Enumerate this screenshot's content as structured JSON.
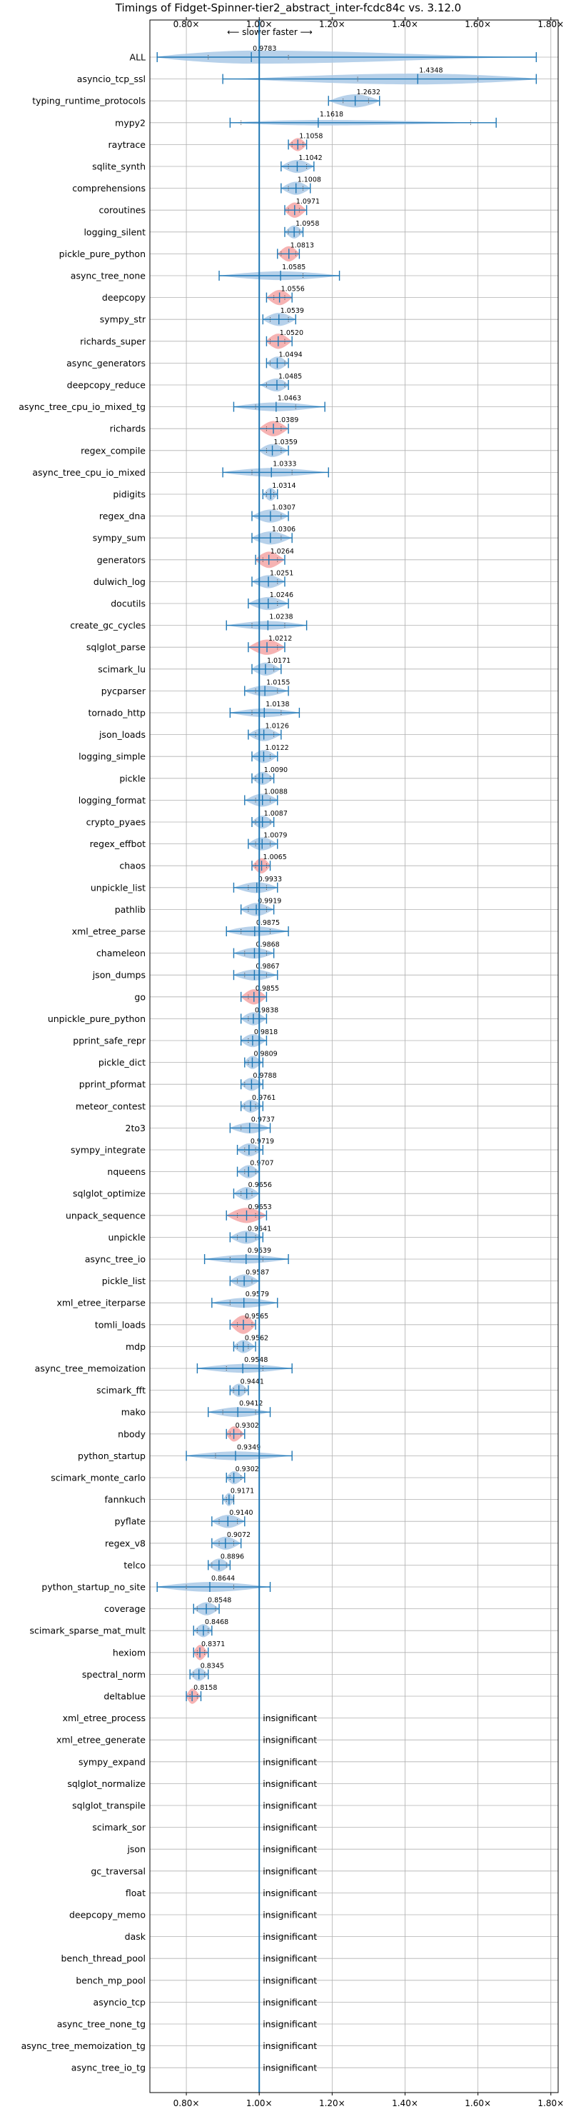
{
  "chart_data": {
    "type": "violin",
    "title": "Timings of Fidget-Spinner-tier2_abstract_inter-fcdc84c vs. 3.12.0",
    "subtitle": "⟵ slower   faster ⟶",
    "xlim": [
      0.7,
      1.82
    ],
    "xticks": [
      0.8,
      1.0,
      1.2,
      1.4,
      1.6,
      1.8
    ],
    "xtick_labels": [
      "0.80×",
      "1.00×",
      "1.20×",
      "1.40×",
      "1.60×",
      "1.80×"
    ],
    "reference_line": 1.0,
    "grid": true,
    "insignificant_label": "insignificant",
    "colors": {
      "violin": "#aac9e6",
      "highlight": "#f4a6a6",
      "line": "#1f77b4"
    },
    "benchmarks": [
      {
        "name": "ALL",
        "value": 0.9783,
        "label": "0.9783",
        "min": 0.72,
        "max": 1.76,
        "q1": 0.86,
        "q3": 1.08,
        "w": 0.6,
        "hl": false
      },
      {
        "name": "asyncio_tcp_ssl",
        "value": 1.4348,
        "label": "1.4348",
        "min": 0.9,
        "max": 1.76,
        "q1": 1.27,
        "q3": 1.6,
        "w": 0.5,
        "hl": false
      },
      {
        "name": "typing_runtime_protocols",
        "value": 1.2632,
        "label": "1.2632",
        "min": 1.19,
        "max": 1.33,
        "q1": 1.23,
        "q3": 1.3,
        "w": 0.6,
        "hl": false
      },
      {
        "name": "mypy2",
        "value": 1.1618,
        "label": "1.1618",
        "min": 0.92,
        "max": 1.65,
        "q1": 0.95,
        "q3": 1.58,
        "w": 0.25,
        "hl": false
      },
      {
        "name": "raytrace",
        "value": 1.1058,
        "label": "1.1058",
        "min": 1.08,
        "max": 1.13,
        "q1": 1.09,
        "q3": 1.12,
        "w": 0.6,
        "hl": true
      },
      {
        "name": "sqlite_synth",
        "value": 1.1042,
        "label": "1.1042",
        "min": 1.06,
        "max": 1.15,
        "q1": 1.08,
        "q3": 1.13,
        "w": 0.6,
        "hl": false
      },
      {
        "name": "comprehensions",
        "value": 1.1008,
        "label": "1.1008",
        "min": 1.06,
        "max": 1.14,
        "q1": 1.08,
        "q3": 1.12,
        "w": 0.6,
        "hl": false
      },
      {
        "name": "coroutines",
        "value": 1.0971,
        "label": "1.0971",
        "min": 1.07,
        "max": 1.13,
        "q1": 1.08,
        "q3": 1.11,
        "w": 0.7,
        "hl": true
      },
      {
        "name": "logging_silent",
        "value": 1.0958,
        "label": "1.0958",
        "min": 1.07,
        "max": 1.12,
        "q1": 1.08,
        "q3": 1.11,
        "w": 0.6,
        "hl": false
      },
      {
        "name": "pickle_pure_python",
        "value": 1.0813,
        "label": "1.0813",
        "min": 1.05,
        "max": 1.11,
        "q1": 1.06,
        "q3": 1.1,
        "w": 0.7,
        "hl": true
      },
      {
        "name": "async_tree_none",
        "value": 1.0585,
        "label": "1.0585",
        "min": 0.89,
        "max": 1.22,
        "q1": 1.0,
        "q3": 1.12,
        "w": 0.4,
        "hl": false
      },
      {
        "name": "deepcopy",
        "value": 1.0556,
        "label": "1.0556",
        "min": 1.02,
        "max": 1.09,
        "q1": 1.04,
        "q3": 1.07,
        "w": 0.7,
        "hl": true
      },
      {
        "name": "sympy_str",
        "value": 1.0539,
        "label": "1.0539",
        "min": 1.01,
        "max": 1.1,
        "q1": 1.03,
        "q3": 1.08,
        "w": 0.6,
        "hl": false
      },
      {
        "name": "richards_super",
        "value": 1.052,
        "label": "1.0520",
        "min": 1.02,
        "max": 1.09,
        "q1": 1.03,
        "q3": 1.07,
        "w": 0.7,
        "hl": true
      },
      {
        "name": "async_generators",
        "value": 1.0494,
        "label": "1.0494",
        "min": 1.02,
        "max": 1.08,
        "q1": 1.03,
        "q3": 1.07,
        "w": 0.6,
        "hl": false
      },
      {
        "name": "deepcopy_reduce",
        "value": 1.0485,
        "label": "1.0485",
        "min": 1.0,
        "max": 1.08,
        "q1": 1.02,
        "q3": 1.07,
        "w": 0.6,
        "hl": false
      },
      {
        "name": "async_tree_cpu_io_mixed_tg",
        "value": 1.0463,
        "label": "1.0463",
        "min": 0.93,
        "max": 1.18,
        "q1": 0.99,
        "q3": 1.1,
        "w": 0.4,
        "hl": false
      },
      {
        "name": "richards",
        "value": 1.0389,
        "label": "1.0389",
        "min": 1.0,
        "max": 1.08,
        "q1": 1.02,
        "q3": 1.06,
        "w": 0.7,
        "hl": true
      },
      {
        "name": "regex_compile",
        "value": 1.0359,
        "label": "1.0359",
        "min": 1.0,
        "max": 1.08,
        "q1": 1.02,
        "q3": 1.06,
        "w": 0.6,
        "hl": false
      },
      {
        "name": "async_tree_cpu_io_mixed",
        "value": 1.0333,
        "label": "1.0333",
        "min": 0.9,
        "max": 1.19,
        "q1": 0.98,
        "q3": 1.09,
        "w": 0.4,
        "hl": false
      },
      {
        "name": "pidigits",
        "value": 1.0314,
        "label": "1.0314",
        "min": 1.01,
        "max": 1.05,
        "q1": 1.02,
        "q3": 1.04,
        "w": 0.6,
        "hl": false
      },
      {
        "name": "regex_dna",
        "value": 1.0307,
        "label": "1.0307",
        "min": 0.98,
        "max": 1.08,
        "q1": 1.0,
        "q3": 1.06,
        "w": 0.6,
        "hl": false
      },
      {
        "name": "sympy_sum",
        "value": 1.0306,
        "label": "1.0306",
        "min": 0.98,
        "max": 1.09,
        "q1": 1.0,
        "q3": 1.06,
        "w": 0.6,
        "hl": false
      },
      {
        "name": "generators",
        "value": 1.0264,
        "label": "1.0264",
        "min": 0.99,
        "max": 1.07,
        "q1": 1.01,
        "q3": 1.05,
        "w": 0.75,
        "hl": true
      },
      {
        "name": "dulwich_log",
        "value": 1.0251,
        "label": "1.0251",
        "min": 0.98,
        "max": 1.07,
        "q1": 1.0,
        "q3": 1.05,
        "w": 0.6,
        "hl": false
      },
      {
        "name": "docutils",
        "value": 1.0246,
        "label": "1.0246",
        "min": 0.97,
        "max": 1.08,
        "q1": 1.0,
        "q3": 1.05,
        "w": 0.6,
        "hl": false
      },
      {
        "name": "create_gc_cycles",
        "value": 1.0238,
        "label": "1.0238",
        "min": 0.91,
        "max": 1.13,
        "q1": 0.98,
        "q3": 1.07,
        "w": 0.4,
        "hl": false
      },
      {
        "name": "sqlglot_parse",
        "value": 1.0212,
        "label": "1.0212",
        "min": 0.97,
        "max": 1.07,
        "q1": 1.0,
        "q3": 1.05,
        "w": 0.7,
        "hl": true
      },
      {
        "name": "scimark_lu",
        "value": 1.0171,
        "label": "1.0171",
        "min": 0.98,
        "max": 1.06,
        "q1": 1.0,
        "q3": 1.04,
        "w": 0.6,
        "hl": false
      },
      {
        "name": "pycparser",
        "value": 1.0155,
        "label": "1.0155",
        "min": 0.96,
        "max": 1.08,
        "q1": 0.99,
        "q3": 1.05,
        "w": 0.5,
        "hl": false
      },
      {
        "name": "tornado_http",
        "value": 1.0138,
        "label": "1.0138",
        "min": 0.92,
        "max": 1.11,
        "q1": 0.98,
        "q3": 1.06,
        "w": 0.4,
        "hl": false
      },
      {
        "name": "json_loads",
        "value": 1.0126,
        "label": "1.0126",
        "min": 0.97,
        "max": 1.06,
        "q1": 0.99,
        "q3": 1.04,
        "w": 0.6,
        "hl": false
      },
      {
        "name": "logging_simple",
        "value": 1.0122,
        "label": "1.0122",
        "min": 0.98,
        "max": 1.05,
        "q1": 1.0,
        "q3": 1.03,
        "w": 0.6,
        "hl": false
      },
      {
        "name": "pickle",
        "value": 1.009,
        "label": "1.0090",
        "min": 0.98,
        "max": 1.04,
        "q1": 0.99,
        "q3": 1.03,
        "w": 0.6,
        "hl": false
      },
      {
        "name": "logging_format",
        "value": 1.0088,
        "label": "1.0088",
        "min": 0.96,
        "max": 1.05,
        "q1": 0.99,
        "q3": 1.03,
        "w": 0.6,
        "hl": false
      },
      {
        "name": "crypto_pyaes",
        "value": 1.0087,
        "label": "1.0087",
        "min": 0.98,
        "max": 1.04,
        "q1": 0.99,
        "q3": 1.03,
        "w": 0.6,
        "hl": false
      },
      {
        "name": "regex_effbot",
        "value": 1.0079,
        "label": "1.0079",
        "min": 0.97,
        "max": 1.05,
        "q1": 0.99,
        "q3": 1.03,
        "w": 0.6,
        "hl": false
      },
      {
        "name": "chaos",
        "value": 1.0065,
        "label": "1.0065",
        "min": 0.98,
        "max": 1.03,
        "q1": 0.99,
        "q3": 1.02,
        "w": 0.7,
        "hl": true
      },
      {
        "name": "unpickle_list",
        "value": 0.9933,
        "label": "0.9933",
        "min": 0.93,
        "max": 1.05,
        "q1": 0.97,
        "q3": 1.02,
        "w": 0.5,
        "hl": false
      },
      {
        "name": "pathlib",
        "value": 0.9919,
        "label": "0.9919",
        "min": 0.95,
        "max": 1.04,
        "q1": 0.97,
        "q3": 1.02,
        "w": 0.6,
        "hl": false
      },
      {
        "name": "xml_etree_parse",
        "value": 0.9875,
        "label": "0.9875",
        "min": 0.91,
        "max": 1.08,
        "q1": 0.95,
        "q3": 1.03,
        "w": 0.45,
        "hl": false
      },
      {
        "name": "chameleon",
        "value": 0.9868,
        "label": "0.9868",
        "min": 0.93,
        "max": 1.04,
        "q1": 0.96,
        "q3": 1.02,
        "w": 0.5,
        "hl": false
      },
      {
        "name": "json_dumps",
        "value": 0.9867,
        "label": "0.9867",
        "min": 0.93,
        "max": 1.05,
        "q1": 0.96,
        "q3": 1.02,
        "w": 0.5,
        "hl": false
      },
      {
        "name": "go",
        "value": 0.9855,
        "label": "0.9855",
        "min": 0.95,
        "max": 1.02,
        "q1": 0.97,
        "q3": 1.0,
        "w": 0.7,
        "hl": true
      },
      {
        "name": "unpickle_pure_python",
        "value": 0.9838,
        "label": "0.9838",
        "min": 0.95,
        "max": 1.02,
        "q1": 0.97,
        "q3": 1.0,
        "w": 0.6,
        "hl": false
      },
      {
        "name": "pprint_safe_repr",
        "value": 0.9818,
        "label": "0.9818",
        "min": 0.95,
        "max": 1.02,
        "q1": 0.97,
        "q3": 1.0,
        "w": 0.6,
        "hl": false
      },
      {
        "name": "pickle_dict",
        "value": 0.9809,
        "label": "0.9809",
        "min": 0.96,
        "max": 1.01,
        "q1": 0.97,
        "q3": 1.0,
        "w": 0.6,
        "hl": false
      },
      {
        "name": "pprint_pformat",
        "value": 0.9788,
        "label": "0.9788",
        "min": 0.95,
        "max": 1.01,
        "q1": 0.96,
        "q3": 1.0,
        "w": 0.6,
        "hl": false
      },
      {
        "name": "meteor_contest",
        "value": 0.9761,
        "label": "0.9761",
        "min": 0.95,
        "max": 1.01,
        "q1": 0.96,
        "q3": 0.99,
        "w": 0.6,
        "hl": false
      },
      {
        "name": "2to3",
        "value": 0.9737,
        "label": "0.9737",
        "min": 0.92,
        "max": 1.03,
        "q1": 0.95,
        "q3": 1.0,
        "w": 0.5,
        "hl": false
      },
      {
        "name": "sympy_integrate",
        "value": 0.9719,
        "label": "0.9719",
        "min": 0.94,
        "max": 1.01,
        "q1": 0.96,
        "q3": 0.99,
        "w": 0.6,
        "hl": false
      },
      {
        "name": "nqueens",
        "value": 0.9707,
        "label": "0.9707",
        "min": 0.94,
        "max": 1.0,
        "q1": 0.96,
        "q3": 0.99,
        "w": 0.6,
        "hl": false
      },
      {
        "name": "sqlglot_optimize",
        "value": 0.9656,
        "label": "0.9656",
        "min": 0.93,
        "max": 1.0,
        "q1": 0.95,
        "q3": 0.98,
        "w": 0.6,
        "hl": false
      },
      {
        "name": "unpack_sequence",
        "value": 0.9653,
        "label": "0.9653",
        "min": 0.91,
        "max": 1.02,
        "q1": 0.94,
        "q3": 0.99,
        "w": 0.7,
        "hl": true
      },
      {
        "name": "unpickle",
        "value": 0.9641,
        "label": "0.9641",
        "min": 0.92,
        "max": 1.01,
        "q1": 0.94,
        "q3": 0.99,
        "w": 0.6,
        "hl": false
      },
      {
        "name": "async_tree_io",
        "value": 0.9639,
        "label": "0.9639",
        "min": 0.85,
        "max": 1.08,
        "q1": 0.92,
        "q3": 1.01,
        "w": 0.4,
        "hl": false
      },
      {
        "name": "pickle_list",
        "value": 0.9587,
        "label": "0.9587",
        "min": 0.92,
        "max": 1.0,
        "q1": 0.94,
        "q3": 0.98,
        "w": 0.6,
        "hl": false
      },
      {
        "name": "xml_etree_iterparse",
        "value": 0.9579,
        "label": "0.9579",
        "min": 0.87,
        "max": 1.05,
        "q1": 0.92,
        "q3": 1.0,
        "w": 0.45,
        "hl": false
      },
      {
        "name": "tomli_loads",
        "value": 0.9565,
        "label": "0.9565",
        "min": 0.92,
        "max": 0.99,
        "q1": 0.94,
        "q3": 0.98,
        "w": 0.85,
        "hl": true
      },
      {
        "name": "mdp",
        "value": 0.9562,
        "label": "0.9562",
        "min": 0.93,
        "max": 0.99,
        "q1": 0.94,
        "q3": 0.97,
        "w": 0.6,
        "hl": false
      },
      {
        "name": "async_tree_memoization",
        "value": 0.9548,
        "label": "0.9548",
        "min": 0.83,
        "max": 1.09,
        "q1": 0.91,
        "q3": 1.01,
        "w": 0.4,
        "hl": false
      },
      {
        "name": "scimark_fft",
        "value": 0.9441,
        "label": "0.9441",
        "min": 0.92,
        "max": 0.97,
        "q1": 0.93,
        "q3": 0.96,
        "w": 0.6,
        "hl": false
      },
      {
        "name": "mako",
        "value": 0.9412,
        "label": "0.9412",
        "min": 0.86,
        "max": 1.03,
        "q1": 0.9,
        "q3": 0.99,
        "w": 0.45,
        "hl": false
      },
      {
        "name": "nbody",
        "value": 0.9302,
        "label": "0.9302",
        "min": 0.91,
        "max": 0.96,
        "q1": 0.92,
        "q3": 0.95,
        "w": 0.7,
        "hl": true
      },
      {
        "name": "python_startup",
        "value": 0.9349,
        "label": "0.9349",
        "min": 0.8,
        "max": 1.09,
        "q1": 0.88,
        "q3": 1.0,
        "w": 0.4,
        "hl": false
      },
      {
        "name": "scimark_monte_carlo",
        "value": 0.9302,
        "label": "0.9302",
        "min": 0.91,
        "max": 0.96,
        "q1": 0.92,
        "q3": 0.95,
        "w": 0.6,
        "hl": false
      },
      {
        "name": "fannkuch",
        "value": 0.9171,
        "label": "0.9171",
        "min": 0.9,
        "max": 0.93,
        "q1": 0.91,
        "q3": 0.93,
        "w": 0.6,
        "hl": false
      },
      {
        "name": "pyflate",
        "value": 0.914,
        "label": "0.9140",
        "min": 0.87,
        "max": 0.96,
        "q1": 0.89,
        "q3": 0.94,
        "w": 0.6,
        "hl": false
      },
      {
        "name": "regex_v8",
        "value": 0.9072,
        "label": "0.9072",
        "min": 0.87,
        "max": 0.95,
        "q1": 0.89,
        "q3": 0.93,
        "w": 0.6,
        "hl": false
      },
      {
        "name": "telco",
        "value": 0.8896,
        "label": "0.8896",
        "min": 0.86,
        "max": 0.92,
        "q1": 0.87,
        "q3": 0.91,
        "w": 0.6,
        "hl": false
      },
      {
        "name": "python_startup_no_site",
        "value": 0.8644,
        "label": "0.8644",
        "min": 0.72,
        "max": 1.03,
        "q1": 0.8,
        "q3": 0.93,
        "w": 0.45,
        "hl": false
      },
      {
        "name": "coverage",
        "value": 0.8548,
        "label": "0.8548",
        "min": 0.82,
        "max": 0.89,
        "q1": 0.83,
        "q3": 0.88,
        "w": 0.6,
        "hl": false
      },
      {
        "name": "scimark_sparse_mat_mult",
        "value": 0.8468,
        "label": "0.8468",
        "min": 0.82,
        "max": 0.87,
        "q1": 0.83,
        "q3": 0.86,
        "w": 0.6,
        "hl": false
      },
      {
        "name": "hexiom",
        "value": 0.8371,
        "label": "0.8371",
        "min": 0.82,
        "max": 0.86,
        "q1": 0.83,
        "q3": 0.85,
        "w": 0.7,
        "hl": true
      },
      {
        "name": "spectral_norm",
        "value": 0.8345,
        "label": "0.8345",
        "min": 0.81,
        "max": 0.86,
        "q1": 0.82,
        "q3": 0.85,
        "w": 0.6,
        "hl": false
      },
      {
        "name": "deltablue",
        "value": 0.8158,
        "label": "0.8158",
        "min": 0.8,
        "max": 0.84,
        "q1": 0.81,
        "q3": 0.83,
        "w": 0.7,
        "hl": true
      },
      {
        "name": "xml_etree_process",
        "value": null,
        "label": "insignificant"
      },
      {
        "name": "xml_etree_generate",
        "value": null,
        "label": "insignificant"
      },
      {
        "name": "sympy_expand",
        "value": null,
        "label": "insignificant"
      },
      {
        "name": "sqlglot_normalize",
        "value": null,
        "label": "insignificant"
      },
      {
        "name": "sqlglot_transpile",
        "value": null,
        "label": "insignificant"
      },
      {
        "name": "scimark_sor",
        "value": null,
        "label": "insignificant"
      },
      {
        "name": "json",
        "value": null,
        "label": "insignificant"
      },
      {
        "name": "gc_traversal",
        "value": null,
        "label": "insignificant"
      },
      {
        "name": "float",
        "value": null,
        "label": "insignificant"
      },
      {
        "name": "deepcopy_memo",
        "value": null,
        "label": "insignificant"
      },
      {
        "name": "dask",
        "value": null,
        "label": "insignificant"
      },
      {
        "name": "bench_thread_pool",
        "value": null,
        "label": "insignificant"
      },
      {
        "name": "bench_mp_pool",
        "value": null,
        "label": "insignificant"
      },
      {
        "name": "asyncio_tcp",
        "value": null,
        "label": "insignificant"
      },
      {
        "name": "async_tree_none_tg",
        "value": null,
        "label": "insignificant"
      },
      {
        "name": "async_tree_memoization_tg",
        "value": null,
        "label": "insignificant"
      },
      {
        "name": "async_tree_io_tg",
        "value": null,
        "label": "insignificant"
      }
    ]
  }
}
